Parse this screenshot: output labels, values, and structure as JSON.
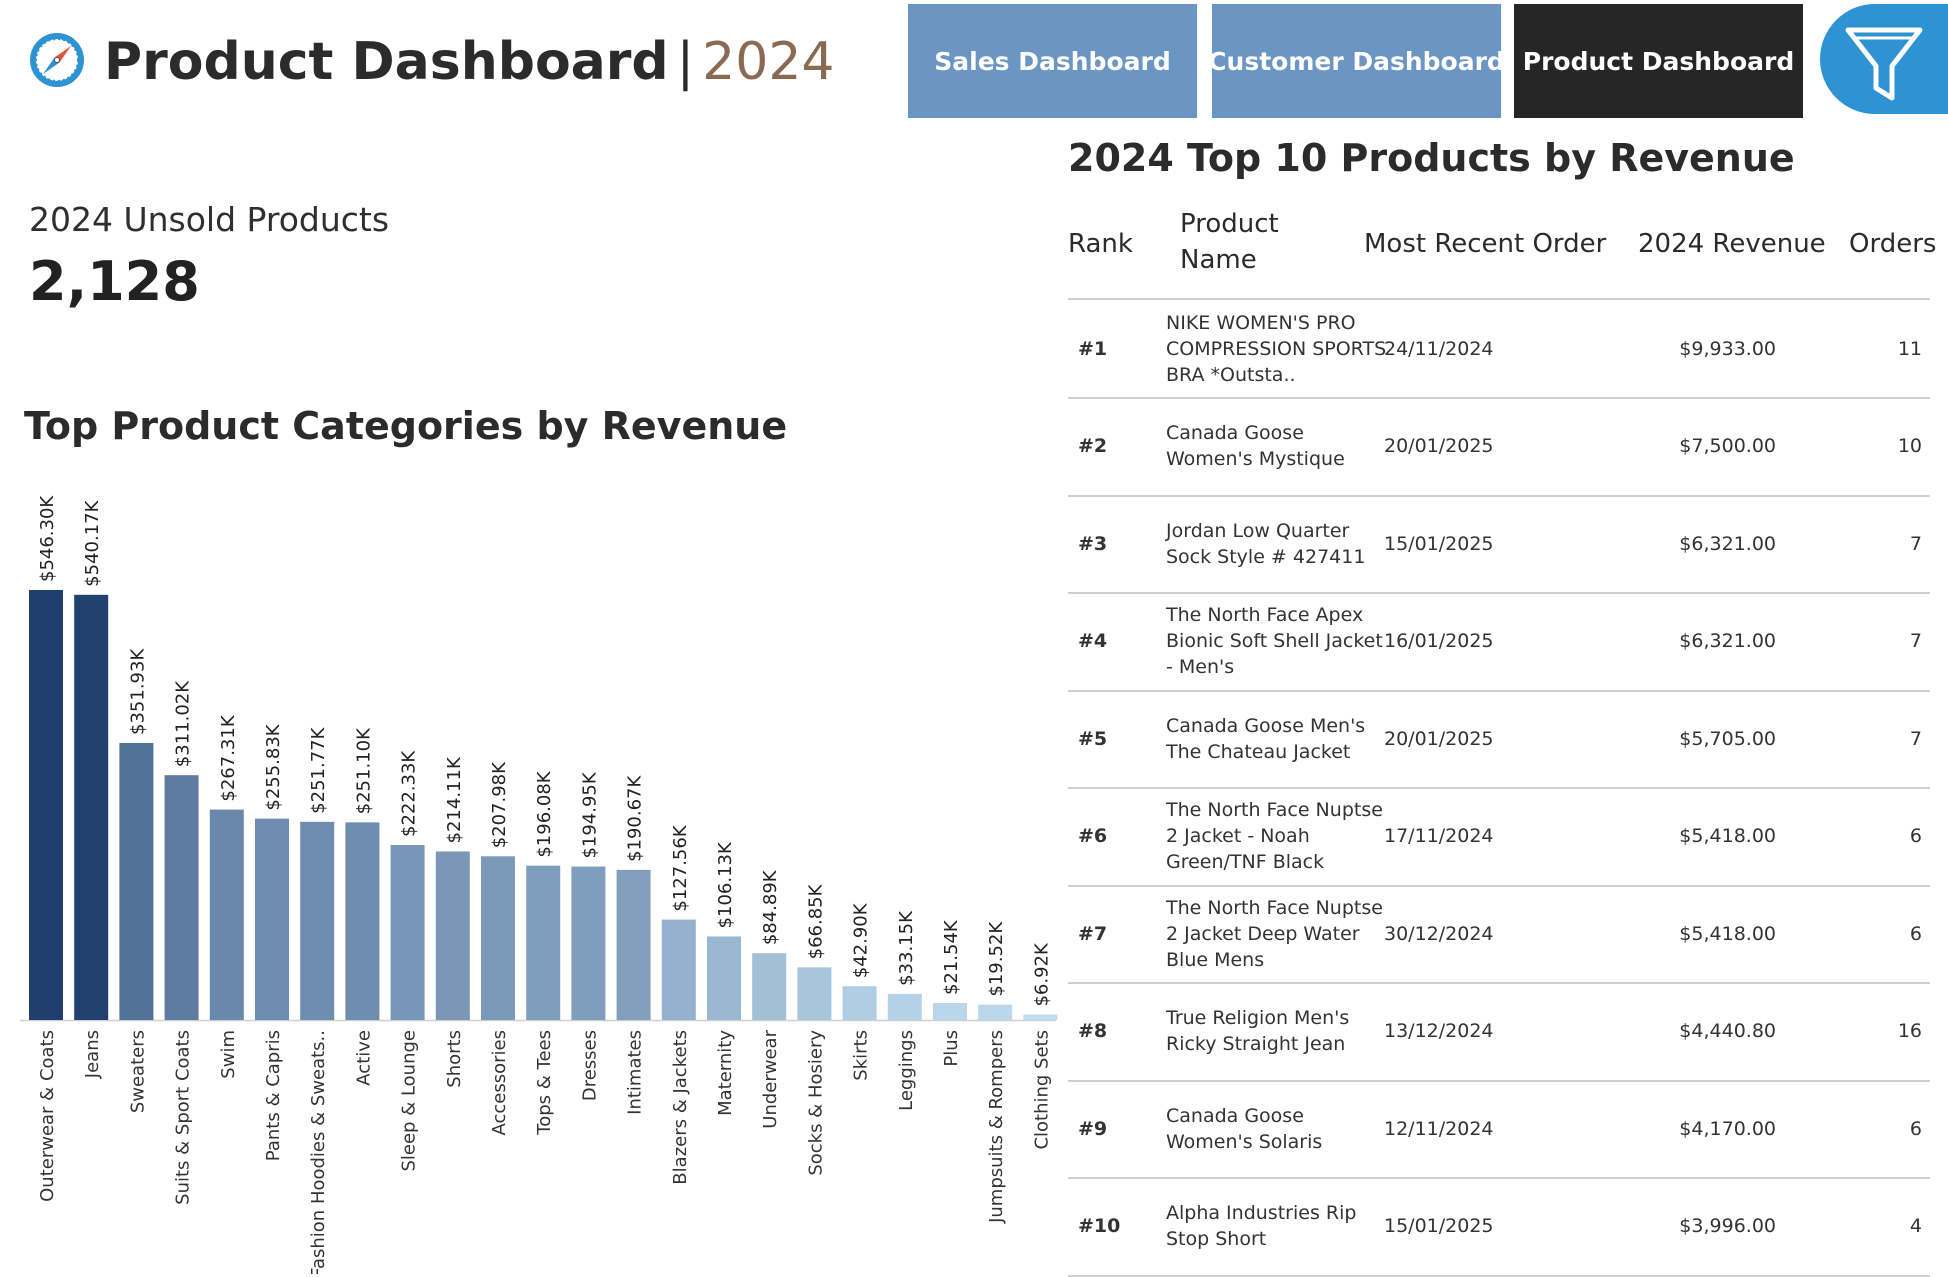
{
  "header": {
    "title": "Product Dashboard",
    "separator": "|",
    "year": "2024",
    "logo_icon": "compass-icon",
    "nav": [
      {
        "label": "Sales Dashboard",
        "color": "#6b96c4"
      },
      {
        "label": "Customer Dashboard",
        "color": "#6b96c4"
      },
      {
        "label": "Product Dashboard",
        "color": "#262626"
      }
    ],
    "filter_icon": "filter-icon",
    "filter_color": "#2d93d3"
  },
  "kpi": {
    "label": "2024 Unsold Products",
    "value": "2,128"
  },
  "chart_data": {
    "type": "bar",
    "title": "Top Product Categories by Revenue",
    "categories": [
      "Outerwear & Coats",
      "Jeans",
      "Sweaters",
      "Suits & Sport Coats",
      "Swim",
      "Pants & Capris",
      "Fashion Hoodies & Sweats..",
      "Active",
      "Sleep & Lounge",
      "Shorts",
      "Accessories",
      "Tops & Tees",
      "Dresses",
      "Intimates",
      "Blazers & Jackets",
      "Maternity",
      "Underwear",
      "Socks & Hosiery",
      "Skirts",
      "Leggings",
      "Plus",
      "Jumpsuits & Rompers",
      "Clothing Sets"
    ],
    "values": [
      546.3,
      540.17,
      351.93,
      311.02,
      267.31,
      255.83,
      251.77,
      251.1,
      222.33,
      214.11,
      207.98,
      196.08,
      194.95,
      190.67,
      127.56,
      106.13,
      84.89,
      66.85,
      42.9,
      33.15,
      21.54,
      19.52,
      6.92
    ],
    "value_labels": [
      "$546.30K",
      "$540.17K",
      "$351.93K",
      "$311.02K",
      "$267.31K",
      "$255.83K",
      "$251.77K",
      "$251.10K",
      "$222.33K",
      "$214.11K",
      "$207.98K",
      "$196.08K",
      "$194.95K",
      "$190.67K",
      "$127.56K",
      "$106.13K",
      "$84.89K",
      "$66.85K",
      "$42.90K",
      "$33.15K",
      "$21.54K",
      "$19.52K",
      "$6.92K"
    ],
    "unit": "$K",
    "ylim": [
      0,
      546.3
    ],
    "grid": false,
    "color_scale": [
      "#c4e0f4",
      "#1f3f6e"
    ]
  },
  "table": {
    "title": "2024 Top 10 Products by Revenue",
    "headers": {
      "rank": "Rank",
      "name": "Product Name",
      "date": "Most Recent Order",
      "revenue": "2024 Revenue",
      "orders": "Orders"
    },
    "rows": [
      {
        "rank": "#1",
        "name": "NIKE WOMEN'S PRO COMPRESSION SPORTS BRA *Outsta..",
        "date": "24/11/2024",
        "revenue": "$9,933.00",
        "orders": "11"
      },
      {
        "rank": "#2",
        "name": "Canada Goose Women's Mystique",
        "date": "20/01/2025",
        "revenue": "$7,500.00",
        "orders": "10"
      },
      {
        "rank": "#3",
        "name": "Jordan Low Quarter Sock Style # 427411",
        "date": "15/01/2025",
        "revenue": "$6,321.00",
        "orders": "7"
      },
      {
        "rank": "#4",
        "name": "The North Face Apex Bionic Soft Shell Jacket - Men's",
        "date": "16/01/2025",
        "revenue": "$6,321.00",
        "orders": "7"
      },
      {
        "rank": "#5",
        "name": "Canada Goose Men's The Chateau Jacket",
        "date": "20/01/2025",
        "revenue": "$5,705.00",
        "orders": "7"
      },
      {
        "rank": "#6",
        "name": "The North Face Nuptse 2 Jacket - Noah Green/TNF Black",
        "date": "17/11/2024",
        "revenue": "$5,418.00",
        "orders": "6"
      },
      {
        "rank": "#7",
        "name": "The North Face Nuptse 2 Jacket Deep Water Blue Mens",
        "date": "30/12/2024",
        "revenue": "$5,418.00",
        "orders": "6"
      },
      {
        "rank": "#8",
        "name": "True Religion Men's Ricky Straight Jean",
        "date": "13/12/2024",
        "revenue": "$4,440.80",
        "orders": "16"
      },
      {
        "rank": "#9",
        "name": "Canada Goose Women's Solaris",
        "date": "12/11/2024",
        "revenue": "$4,170.00",
        "orders": "6"
      },
      {
        "rank": "#10",
        "name": "Alpha Industries Rip Stop Short",
        "date": "15/01/2025",
        "revenue": "$3,996.00",
        "orders": "4"
      }
    ]
  }
}
